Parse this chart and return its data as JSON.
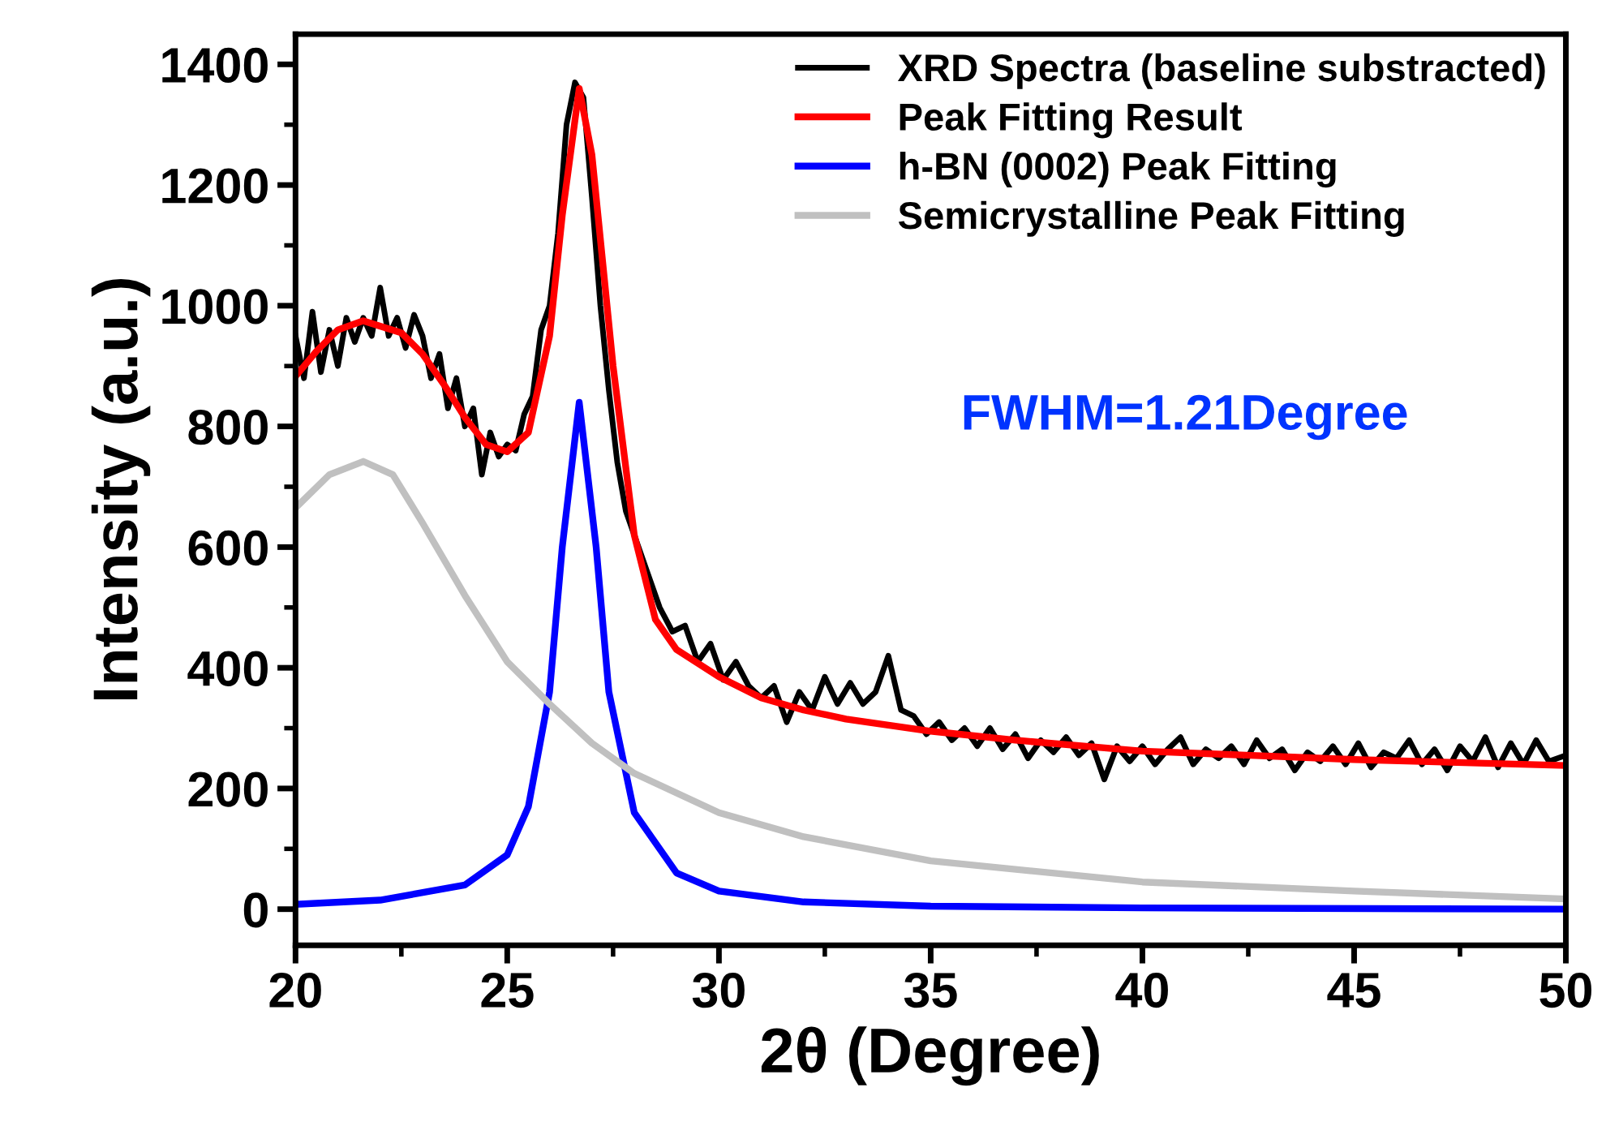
{
  "chart_data": {
    "type": "line",
    "xlabel": "2θ (Degree)",
    "ylabel": "Intensity (a.u.)",
    "xlim": [
      20,
      50
    ],
    "xticks": [
      20,
      25,
      30,
      35,
      40,
      45,
      50
    ],
    "ylim": [
      -60,
      1450
    ],
    "yticks": [
      0,
      200,
      400,
      600,
      800,
      1000,
      1200,
      1400
    ],
    "grid": false,
    "legend": "top right",
    "marker": "none",
    "line_style": "solid",
    "annotations": [
      "FWHM=1.21Degree"
    ],
    "series": [
      {
        "name": "XRD Spectra (baseline substracted)",
        "color": "#000000",
        "x": [
          20.0,
          20.2,
          20.4,
          20.6,
          20.8,
          21.0,
          21.2,
          21.4,
          21.6,
          21.8,
          22.0,
          22.2,
          22.4,
          22.6,
          22.8,
          23.0,
          23.2,
          23.4,
          23.6,
          23.8,
          24.0,
          24.2,
          24.4,
          24.6,
          24.8,
          25.0,
          25.2,
          25.4,
          25.6,
          25.8,
          26.0,
          26.2,
          26.4,
          26.6,
          26.8,
          27.0,
          27.2,
          27.4,
          27.6,
          27.8,
          28.0,
          28.3,
          28.6,
          28.9,
          29.2,
          29.5,
          29.8,
          30.1,
          30.4,
          30.7,
          31.0,
          31.3,
          31.6,
          31.9,
          32.2,
          32.5,
          32.8,
          33.1,
          33.4,
          33.7,
          34.0,
          34.3,
          34.6,
          34.9,
          35.2,
          35.5,
          35.8,
          36.1,
          36.4,
          36.7,
          37.0,
          37.3,
          37.6,
          37.9,
          38.2,
          38.5,
          38.8,
          39.1,
          39.4,
          39.7,
          40.0,
          40.3,
          40.6,
          40.9,
          41.2,
          41.5,
          41.8,
          42.1,
          42.4,
          42.7,
          43.0,
          43.3,
          43.6,
          43.9,
          44.2,
          44.5,
          44.8,
          45.1,
          45.4,
          45.7,
          46.0,
          46.3,
          46.6,
          46.9,
          47.2,
          47.5,
          47.8,
          48.1,
          48.4,
          48.7,
          49.0,
          49.3,
          49.6,
          50.0
        ],
        "values": [
          950,
          880,
          990,
          890,
          960,
          900,
          980,
          940,
          980,
          950,
          1030,
          950,
          980,
          930,
          985,
          950,
          880,
          920,
          830,
          880,
          800,
          830,
          720,
          790,
          750,
          770,
          760,
          820,
          850,
          960,
          1000,
          1120,
          1300,
          1370,
          1345,
          1180,
          1000,
          860,
          740,
          660,
          620,
          560,
          500,
          460,
          470,
          410,
          440,
          380,
          410,
          370,
          350,
          370,
          310,
          360,
          330,
          385,
          340,
          375,
          340,
          360,
          420,
          330,
          320,
          290,
          310,
          280,
          300,
          270,
          300,
          265,
          290,
          250,
          280,
          260,
          285,
          255,
          275,
          215,
          270,
          245,
          270,
          240,
          265,
          285,
          240,
          265,
          250,
          270,
          240,
          280,
          250,
          265,
          230,
          260,
          245,
          270,
          240,
          275,
          235,
          260,
          250,
          280,
          240,
          265,
          230,
          270,
          245,
          285,
          235,
          275,
          240,
          280,
          245,
          255
        ]
      },
      {
        "name": "Peak Fitting Result",
        "color": "#ff0000",
        "x": [
          20,
          20.5,
          21,
          21.6,
          22.5,
          23,
          23.5,
          24,
          24.5,
          25,
          25.5,
          26,
          26.3,
          26.7,
          27,
          27.5,
          28,
          28.5,
          29,
          30,
          31,
          32,
          33,
          35,
          37,
          40,
          45,
          50
        ],
        "values": [
          883,
          925,
          960,
          975,
          955,
          920,
          870,
          815,
          770,
          758,
          790,
          950,
          1150,
          1360,
          1250,
          900,
          620,
          480,
          430,
          385,
          350,
          330,
          315,
          295,
          280,
          262,
          248,
          238
        ]
      },
      {
        "name": "h-BN (0002) Peak Fitting",
        "color": "#0000ff",
        "x": [
          20,
          22,
          24,
          25,
          25.5,
          26,
          26.3,
          26.7,
          27.1,
          27.4,
          28,
          29,
          30,
          32,
          35,
          40,
          50
        ],
        "values": [
          8,
          15,
          40,
          90,
          170,
          360,
          600,
          840,
          600,
          360,
          160,
          60,
          30,
          12,
          5,
          2,
          0
        ]
      },
      {
        "name": "Semicrystalline Peak Fitting",
        "color": "#c0c0c0",
        "x": [
          20,
          20.8,
          21.6,
          22.3,
          23,
          24,
          25,
          26,
          27,
          28,
          30,
          32,
          35,
          40,
          45,
          50
        ],
        "values": [
          665,
          720,
          742,
          720,
          640,
          520,
          410,
          340,
          275,
          225,
          160,
          120,
          80,
          45,
          30,
          17
        ]
      }
    ]
  }
}
